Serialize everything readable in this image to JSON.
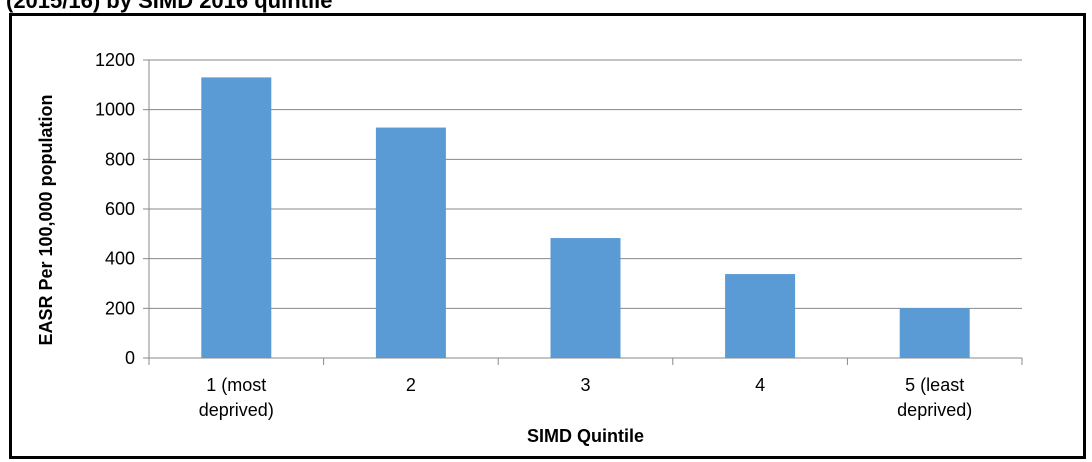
{
  "page": {
    "title": "(2015/16) by SIMD 2016 quintile"
  },
  "chart_data": {
    "type": "bar",
    "title": "",
    "xlabel": "SIMD Quintile",
    "ylabel": "EASR Per 100,000 population",
    "categories": [
      "1 (most deprived)",
      "2",
      "3",
      "4",
      "5 (least deprived)"
    ],
    "category_lines": [
      [
        "1 (most",
        "deprived)"
      ],
      [
        "2"
      ],
      [
        "3"
      ],
      [
        "4"
      ],
      [
        "5 (least",
        "deprived)"
      ]
    ],
    "values": [
      1130,
      928,
      483,
      338,
      201
    ],
    "ylim": [
      0,
      1200
    ],
    "yticks": [
      0,
      200,
      400,
      600,
      800,
      1000,
      1200
    ],
    "grid": true,
    "legend": "none",
    "colors": {
      "bar": "#5b9bd5",
      "grid": "#888888",
      "axis": "#888888"
    }
  }
}
